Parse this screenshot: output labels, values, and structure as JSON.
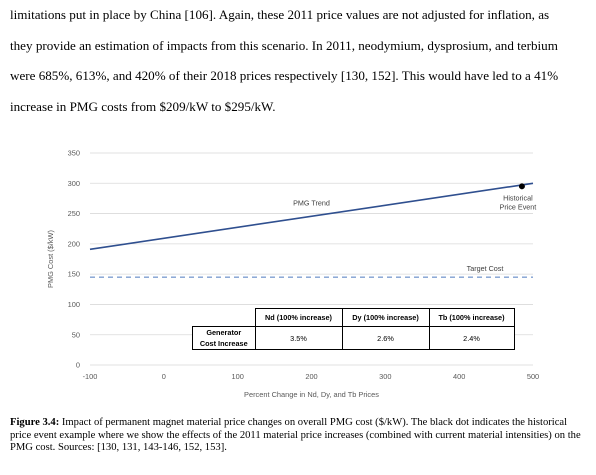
{
  "paragraph_lines": [
    "limitations put in place by China [106]. Again, these 2011 price values are not adjusted for inflation, as",
    "they provide an estimation of impacts from this scenario.  In 2011, neodymium, dysprosium, and terbium",
    "were 685%, 613%, and 420% of their 2018 prices respectively [130, 152]. This would have led to a 41%",
    "increase in PMG costs from $209/kW to $295/kW."
  ],
  "chart_data": {
    "type": "line",
    "xlabel": "Percent Change in Nd, Dy, and Tb Prices",
    "ylabel": "PMG Cost ($/kW)",
    "xlim": [
      -100,
      500
    ],
    "ylim": [
      0,
      350
    ],
    "x_ticks": [
      "-100",
      "0",
      "100",
      "200",
      "300",
      "400",
      "500"
    ],
    "y_ticks": [
      "0",
      "50",
      "100",
      "150",
      "200",
      "250",
      "300",
      "350"
    ],
    "series": [
      {
        "name": "PMG Trend",
        "x": [
          -100,
          500
        ],
        "y": [
          191,
          300
        ],
        "color": "#2f4f8f"
      },
      {
        "name": "Target Cost",
        "x": [
          -100,
          500
        ],
        "y": [
          145,
          145
        ],
        "color": "#7f9fd0",
        "style": "dashed"
      }
    ],
    "marker": {
      "x": 485,
      "y": 295,
      "label_line1": "Historical",
      "label_line2": "Price Event"
    },
    "grid": "horizontal"
  },
  "table": {
    "headers": [
      "Nd (100% increase)",
      "Dy (100% increase)",
      "Tb (100% increase)"
    ],
    "row_label_line1": "Generator",
    "row_label_line2": "Cost Increase",
    "values": [
      "3.5%",
      "2.6%",
      "2.4%"
    ]
  },
  "caption": {
    "label": "Figure 3.4:",
    "text": " Impact of permanent magnet material price changes on overall PMG cost ($/kW). The black dot indicates the historical price event example where we show the effects of the 2011 material price increases (combined with current material intensities) on the PMG cost. Sources: [130, 131, 143-146, 152, 153]."
  }
}
